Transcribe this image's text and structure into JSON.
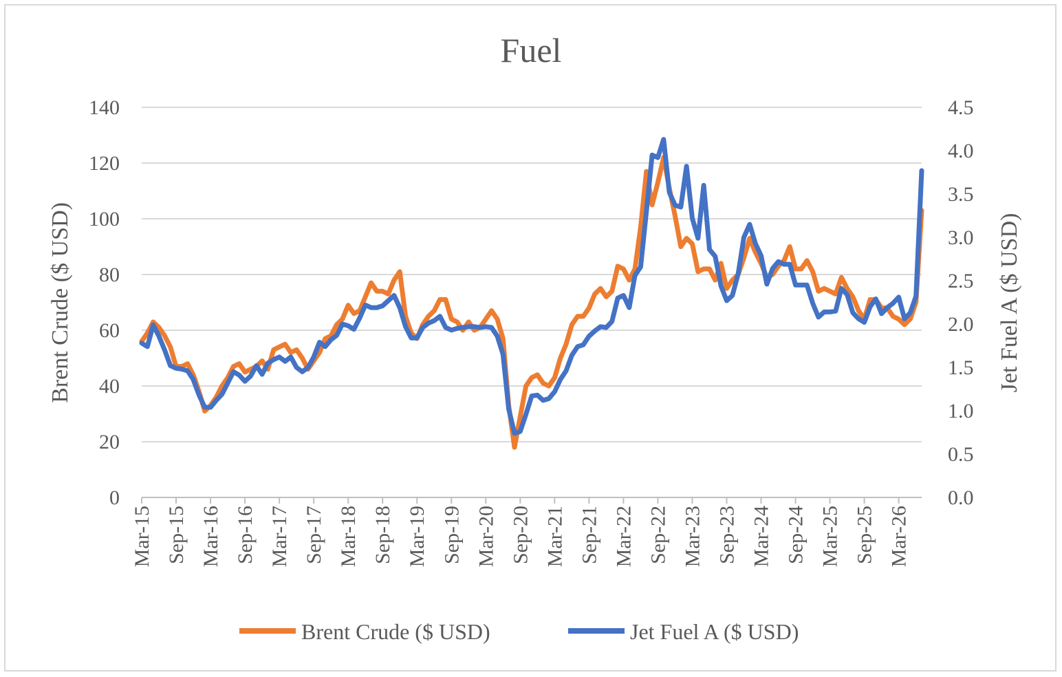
{
  "chart_data": {
    "type": "line",
    "title": "Fuel",
    "ylabel": "Brent Crude ($ USD)",
    "y2label": "Jet Fuel A ($ USD)",
    "ylim": [
      0,
      140
    ],
    "y2lim": [
      0,
      4.5
    ],
    "yticks": [
      "0",
      "20",
      "40",
      "60",
      "80",
      "100",
      "120",
      "140"
    ],
    "y2ticks": [
      "0.0",
      "0.5",
      "1.0",
      "1.5",
      "2.0",
      "2.5",
      "3.0",
      "3.5",
      "4.0",
      "4.5"
    ],
    "xticks": [
      "Mar-15",
      "Sep-15",
      "Mar-16",
      "Sep-16",
      "Mar-17",
      "Sep-17",
      "Mar-18",
      "Sep-18",
      "Mar-19",
      "Sep-19",
      "Mar-20",
      "Sep-20",
      "Mar-21",
      "Sep-21",
      "Mar-22",
      "Sep-22",
      "Mar-23",
      "Sep-23",
      "Mar-24",
      "Sep-24",
      "Mar-25",
      "Sep-25",
      "Mar-26"
    ],
    "legend": "bottom",
    "x_unit": "months since Mar-15",
    "series": [
      {
        "name": "Brent Crude ($ USD)",
        "axis": "left",
        "color": "#ED7D31",
        "points": [
          [
            0,
            56
          ],
          [
            1,
            59
          ],
          [
            2,
            63
          ],
          [
            3,
            61
          ],
          [
            4,
            58
          ],
          [
            5,
            54
          ],
          [
            6,
            47
          ],
          [
            7,
            47
          ],
          [
            8,
            48
          ],
          [
            9,
            44
          ],
          [
            10,
            38
          ],
          [
            11,
            31
          ],
          [
            12,
            33
          ],
          [
            13,
            36
          ],
          [
            14,
            40
          ],
          [
            15,
            43
          ],
          [
            16,
            47
          ],
          [
            17,
            48
          ],
          [
            18,
            45
          ],
          [
            19,
            46
          ],
          [
            20,
            47
          ],
          [
            21,
            49
          ],
          [
            22,
            46
          ],
          [
            23,
            53
          ],
          [
            24,
            54
          ],
          [
            25,
            55
          ],
          [
            26,
            52
          ],
          [
            27,
            53
          ],
          [
            28,
            50
          ],
          [
            29,
            46
          ],
          [
            30,
            49
          ],
          [
            31,
            52
          ],
          [
            32,
            57
          ],
          [
            33,
            58
          ],
          [
            34,
            62
          ],
          [
            35,
            64
          ],
          [
            36,
            69
          ],
          [
            37,
            66
          ],
          [
            38,
            67
          ],
          [
            39,
            72
          ],
          [
            40,
            77
          ],
          [
            41,
            74
          ],
          [
            42,
            74
          ],
          [
            43,
            73
          ],
          [
            44,
            78
          ],
          [
            45,
            81
          ],
          [
            46,
            65
          ],
          [
            47,
            59
          ],
          [
            48,
            57
          ],
          [
            49,
            62
          ],
          [
            50,
            65
          ],
          [
            51,
            67
          ],
          [
            52,
            71
          ],
          [
            53,
            71
          ],
          [
            54,
            64
          ],
          [
            55,
            63
          ],
          [
            56,
            60
          ],
          [
            57,
            63
          ],
          [
            58,
            60
          ],
          [
            59,
            61
          ],
          [
            60,
            64
          ],
          [
            61,
            67
          ],
          [
            62,
            64
          ],
          [
            63,
            57
          ],
          [
            64,
            33
          ],
          [
            65,
            18
          ],
          [
            66,
            29
          ],
          [
            67,
            40
          ],
          [
            68,
            43
          ],
          [
            69,
            44
          ],
          [
            70,
            41
          ],
          [
            71,
            40
          ],
          [
            72,
            43
          ],
          [
            73,
            50
          ],
          [
            74,
            55
          ],
          [
            75,
            62
          ],
          [
            76,
            65
          ],
          [
            77,
            65
          ],
          [
            78,
            68
          ],
          [
            79,
            73
          ],
          [
            80,
            75
          ],
          [
            81,
            72
          ],
          [
            82,
            74
          ],
          [
            83,
            83
          ],
          [
            84,
            82
          ],
          [
            85,
            78
          ],
          [
            86,
            82
          ],
          [
            87,
            97
          ],
          [
            88,
            117
          ],
          [
            89,
            105
          ],
          [
            90,
            113
          ],
          [
            91,
            122
          ],
          [
            92,
            111
          ],
          [
            93,
            101
          ],
          [
            94,
            90
          ],
          [
            95,
            93
          ],
          [
            96,
            91
          ],
          [
            97,
            81
          ],
          [
            98,
            82
          ],
          [
            99,
            82
          ],
          [
            100,
            78
          ],
          [
            101,
            84
          ],
          [
            102,
            75
          ],
          [
            103,
            78
          ],
          [
            104,
            80
          ],
          [
            105,
            86
          ],
          [
            106,
            93
          ],
          [
            107,
            88
          ],
          [
            108,
            84
          ],
          [
            109,
            79
          ],
          [
            110,
            80
          ],
          [
            111,
            83
          ],
          [
            112,
            85
          ],
          [
            113,
            90
          ],
          [
            114,
            82
          ],
          [
            115,
            82
          ],
          [
            116,
            85
          ],
          [
            117,
            81
          ],
          [
            118,
            74
          ],
          [
            119,
            75
          ],
          [
            120,
            74
          ],
          [
            121,
            73
          ],
          [
            122,
            79
          ],
          [
            123,
            75
          ],
          [
            124,
            72
          ],
          [
            125,
            67
          ],
          [
            126,
            64
          ],
          [
            127,
            71
          ],
          [
            128,
            71
          ],
          [
            129,
            68
          ],
          [
            130,
            68
          ],
          [
            131,
            65
          ],
          [
            132,
            64
          ],
          [
            133,
            62
          ],
          [
            134,
            64
          ],
          [
            135,
            70
          ],
          [
            136,
            103
          ]
        ]
      },
      {
        "name": "Jet Fuel A ($ USD)",
        "axis": "right",
        "color": "#4472C4",
        "points": [
          [
            0,
            1.78
          ],
          [
            1,
            1.74
          ],
          [
            2,
            1.99
          ],
          [
            3,
            1.86
          ],
          [
            4,
            1.7
          ],
          [
            5,
            1.52
          ],
          [
            6,
            1.49
          ],
          [
            7,
            1.48
          ],
          [
            8,
            1.46
          ],
          [
            9,
            1.36
          ],
          [
            10,
            1.18
          ],
          [
            11,
            1.04
          ],
          [
            12,
            1.04
          ],
          [
            13,
            1.12
          ],
          [
            14,
            1.19
          ],
          [
            15,
            1.32
          ],
          [
            16,
            1.45
          ],
          [
            17,
            1.41
          ],
          [
            18,
            1.34
          ],
          [
            19,
            1.4
          ],
          [
            20,
            1.52
          ],
          [
            21,
            1.42
          ],
          [
            22,
            1.55
          ],
          [
            23,
            1.59
          ],
          [
            24,
            1.62
          ],
          [
            25,
            1.57
          ],
          [
            26,
            1.62
          ],
          [
            27,
            1.5
          ],
          [
            28,
            1.45
          ],
          [
            29,
            1.5
          ],
          [
            30,
            1.62
          ],
          [
            31,
            1.79
          ],
          [
            32,
            1.74
          ],
          [
            33,
            1.82
          ],
          [
            34,
            1.87
          ],
          [
            35,
            2.0
          ],
          [
            36,
            1.98
          ],
          [
            37,
            1.94
          ],
          [
            38,
            2.07
          ],
          [
            39,
            2.22
          ],
          [
            40,
            2.19
          ],
          [
            41,
            2.19
          ],
          [
            42,
            2.21
          ],
          [
            43,
            2.27
          ],
          [
            44,
            2.33
          ],
          [
            45,
            2.19
          ],
          [
            46,
            1.97
          ],
          [
            47,
            1.84
          ],
          [
            48,
            1.84
          ],
          [
            49,
            1.96
          ],
          [
            50,
            2.01
          ],
          [
            51,
            2.04
          ],
          [
            52,
            2.09
          ],
          [
            53,
            1.96
          ],
          [
            54,
            1.93
          ],
          [
            55,
            1.95
          ],
          [
            56,
            1.96
          ],
          [
            57,
            1.97
          ],
          [
            58,
            1.97
          ],
          [
            59,
            1.96
          ],
          [
            60,
            1.97
          ],
          [
            61,
            1.96
          ],
          [
            62,
            1.86
          ],
          [
            63,
            1.65
          ],
          [
            64,
            1.02
          ],
          [
            65,
            0.74
          ],
          [
            66,
            0.76
          ],
          [
            67,
            0.96
          ],
          [
            68,
            1.17
          ],
          [
            69,
            1.18
          ],
          [
            70,
            1.12
          ],
          [
            71,
            1.14
          ],
          [
            72,
            1.22
          ],
          [
            73,
            1.36
          ],
          [
            74,
            1.46
          ],
          [
            75,
            1.64
          ],
          [
            76,
            1.74
          ],
          [
            77,
            1.76
          ],
          [
            78,
            1.86
          ],
          [
            79,
            1.92
          ],
          [
            80,
            1.97
          ],
          [
            81,
            1.96
          ],
          [
            82,
            2.03
          ],
          [
            83,
            2.3
          ],
          [
            84,
            2.33
          ],
          [
            85,
            2.19
          ],
          [
            86,
            2.56
          ],
          [
            87,
            2.66
          ],
          [
            88,
            3.3
          ],
          [
            89,
            3.95
          ],
          [
            90,
            3.92
          ],
          [
            91,
            4.13
          ],
          [
            92,
            3.52
          ],
          [
            93,
            3.37
          ],
          [
            94,
            3.35
          ],
          [
            95,
            3.82
          ],
          [
            96,
            3.22
          ],
          [
            97,
            2.99
          ],
          [
            98,
            3.6
          ],
          [
            99,
            2.86
          ],
          [
            100,
            2.78
          ],
          [
            101,
            2.44
          ],
          [
            102,
            2.27
          ],
          [
            103,
            2.33
          ],
          [
            104,
            2.58
          ],
          [
            105,
            3.0
          ],
          [
            106,
            3.15
          ],
          [
            107,
            2.93
          ],
          [
            108,
            2.79
          ],
          [
            109,
            2.46
          ],
          [
            110,
            2.64
          ],
          [
            111,
            2.72
          ],
          [
            112,
            2.69
          ],
          [
            113,
            2.69
          ],
          [
            114,
            2.45
          ],
          [
            115,
            2.45
          ],
          [
            116,
            2.45
          ],
          [
            117,
            2.24
          ],
          [
            118,
            2.08
          ],
          [
            119,
            2.14
          ],
          [
            120,
            2.14
          ],
          [
            121,
            2.15
          ],
          [
            122,
            2.41
          ],
          [
            123,
            2.34
          ],
          [
            124,
            2.13
          ],
          [
            125,
            2.06
          ],
          [
            126,
            2.02
          ],
          [
            127,
            2.2
          ],
          [
            128,
            2.29
          ],
          [
            129,
            2.12
          ],
          [
            130,
            2.19
          ],
          [
            131,
            2.24
          ],
          [
            132,
            2.31
          ],
          [
            133,
            2.06
          ],
          [
            134,
            2.13
          ],
          [
            135,
            2.32
          ],
          [
            136,
            3.77
          ]
        ]
      }
    ]
  }
}
